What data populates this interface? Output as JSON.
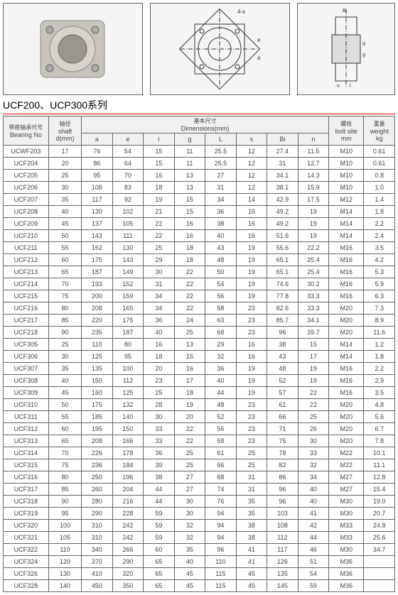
{
  "series_title": "UCF200、UCP300系列",
  "diagram_label_4s": "4-s",
  "headers": {
    "bearing_cjk": "带座轴承代号",
    "bearing_en": "Bearing No",
    "shaft_cjk": "轴径",
    "shaft_en": "shaft",
    "shaft_unit": "d(mm)",
    "dims_cjk": "基本尺寸",
    "dims_en": "Dimensions(mm)",
    "bolt_cjk": "螺栓",
    "bolt_en": "bolt site",
    "bolt_unit": "mm",
    "weight_cjk": "重量",
    "weight_en": "weight",
    "weight_unit": "kg",
    "a": "a",
    "e": "e",
    "i": "i",
    "g": "g",
    "l": "L",
    "s": "s",
    "bi": "Bi",
    "n": "n"
  },
  "rows": [
    {
      "no": "UCWF203",
      "d": "17",
      "a": "76",
      "e": "54",
      "i": "15",
      "g": "11",
      "l": "25.5",
      "s": "12",
      "bi": "27.4",
      "n": "11.5",
      "bolt": "M10",
      "wt": "0.61"
    },
    {
      "no": "UCF204",
      "d": "20",
      "a": "86",
      "e": "64",
      "i": "15",
      "g": "11",
      "l": "25.5",
      "s": "12",
      "bi": "31",
      "n": "12.7",
      "bolt": "M10",
      "wt": "0.61"
    },
    {
      "no": "UCF205",
      "d": "25",
      "a": "95",
      "e": "70",
      "i": "16",
      "g": "13",
      "l": "27",
      "s": "12",
      "bi": "34.1",
      "n": "14.3",
      "bolt": "M10",
      "wt": "0.8"
    },
    {
      "no": "UCF206",
      "d": "30",
      "a": "108",
      "e": "83",
      "i": "18",
      "g": "13",
      "l": "31",
      "s": "12",
      "bi": "38.1",
      "n": "15.9",
      "bolt": "M10",
      "wt": "1.0"
    },
    {
      "no": "UCF207",
      "d": "35",
      "a": "117",
      "e": "92",
      "i": "19",
      "g": "15",
      "l": "34",
      "s": "14",
      "bi": "42.9",
      "n": "17.5",
      "bolt": "M12",
      "wt": "1.4"
    },
    {
      "no": "UCF208",
      "d": "40",
      "a": "130",
      "e": "102",
      "i": "21",
      "g": "15",
      "l": "36",
      "s": "16",
      "bi": "49.2",
      "n": "19",
      "bolt": "M14",
      "wt": "1.8"
    },
    {
      "no": "UCF209",
      "d": "45",
      "a": "137",
      "e": "105",
      "i": "22",
      "g": "16",
      "l": "38",
      "s": "16",
      "bi": "49.2",
      "n": "19",
      "bolt": "M14",
      "wt": "2.2"
    },
    {
      "no": "UCF210",
      "d": "50",
      "a": "143",
      "e": "111",
      "i": "22",
      "g": "16",
      "l": "40",
      "s": "16",
      "bi": "51.6",
      "n": "19",
      "bolt": "M14",
      "wt": "2.4"
    },
    {
      "no": "UCF211",
      "d": "55",
      "a": "162",
      "e": "130",
      "i": "25",
      "g": "18",
      "l": "43",
      "s": "19",
      "bi": "55.6",
      "n": "22.2",
      "bolt": "M16",
      "wt": "3.5"
    },
    {
      "no": "UCF212",
      "d": "60",
      "a": "175",
      "e": "143",
      "i": "29",
      "g": "18",
      "l": "48",
      "s": "19",
      "bi": "65.1",
      "n": "25.4",
      "bolt": "M16",
      "wt": "4.2"
    },
    {
      "no": "UCF213",
      "d": "65",
      "a": "187",
      "e": "149",
      "i": "30",
      "g": "22",
      "l": "50",
      "s": "19",
      "bi": "65.1",
      "n": "25.4",
      "bolt": "M16",
      "wt": "5.3"
    },
    {
      "no": "UCF214",
      "d": "70",
      "a": "193",
      "e": "152",
      "i": "31",
      "g": "22",
      "l": "54",
      "s": "19",
      "bi": "74.6",
      "n": "30.2",
      "bolt": "M16",
      "wt": "5.9"
    },
    {
      "no": "UCF215",
      "d": "75",
      "a": "200",
      "e": "159",
      "i": "34",
      "g": "22",
      "l": "56",
      "s": "19",
      "bi": "77.8",
      "n": "33.3",
      "bolt": "M16",
      "wt": "6.3"
    },
    {
      "no": "UCF216",
      "d": "80",
      "a": "208",
      "e": "165",
      "i": "34",
      "g": "22",
      "l": "58",
      "s": "23",
      "bi": "82.6",
      "n": "33.3",
      "bolt": "M20",
      "wt": "7.3"
    },
    {
      "no": "UCF217",
      "d": "85",
      "a": "220",
      "e": "175",
      "i": "36",
      "g": "24",
      "l": "63",
      "s": "23",
      "bi": "85.7",
      "n": "34.1",
      "bolt": "M20",
      "wt": "8.9"
    },
    {
      "no": "UCF218",
      "d": "90",
      "a": "235",
      "e": "187",
      "i": "40",
      "g": "25",
      "l": "68",
      "s": "23",
      "bi": "96",
      "n": "39.7",
      "bolt": "M20",
      "wt": "11.6"
    },
    {
      "no": "UCF305",
      "d": "25",
      "a": "110",
      "e": "80",
      "i": "16",
      "g": "13",
      "l": "29",
      "s": "16",
      "bi": "38",
      "n": "15",
      "bolt": "M14",
      "wt": "1.2"
    },
    {
      "no": "UCF306",
      "d": "30",
      "a": "125",
      "e": "95",
      "i": "18",
      "g": "15",
      "l": "32",
      "s": "16",
      "bi": "43",
      "n": "17",
      "bolt": "M14",
      "wt": "1.8"
    },
    {
      "no": "UCF307",
      "d": "35",
      "a": "135",
      "e": "100",
      "i": "20",
      "g": "16",
      "l": "36",
      "s": "19",
      "bi": "48",
      "n": "19",
      "bolt": "M16",
      "wt": "2.2"
    },
    {
      "no": "UCF308",
      "d": "40",
      "a": "150",
      "e": "112",
      "i": "23",
      "g": "17",
      "l": "40",
      "s": "19",
      "bi": "52",
      "n": "19",
      "bolt": "M16",
      "wt": "2.9"
    },
    {
      "no": "UCF309",
      "d": "45",
      "a": "160",
      "e": "125",
      "i": "25",
      "g": "18",
      "l": "44",
      "s": "19",
      "bi": "57",
      "n": "22",
      "bolt": "M16",
      "wt": "3.5"
    },
    {
      "no": "UCF310",
      "d": "50",
      "a": "175",
      "e": "132",
      "i": "28",
      "g": "19",
      "l": "48",
      "s": "23",
      "bi": "61",
      "n": "22",
      "bolt": "M20",
      "wt": "4.8"
    },
    {
      "no": "UCF311",
      "d": "55",
      "a": "185",
      "e": "140",
      "i": "30",
      "g": "20",
      "l": "52",
      "s": "23",
      "bi": "66",
      "n": "25",
      "bolt": "M20",
      "wt": "5.6"
    },
    {
      "no": "UCF312",
      "d": "60",
      "a": "195",
      "e": "150",
      "i": "33",
      "g": "22",
      "l": "56",
      "s": "23",
      "bi": "71",
      "n": "26",
      "bolt": "M20",
      "wt": "6.7"
    },
    {
      "no": "UCF313",
      "d": "65",
      "a": "208",
      "e": "166",
      "i": "33",
      "g": "22",
      "l": "58",
      "s": "23",
      "bi": "75",
      "n": "30",
      "bolt": "M20",
      "wt": "7.8"
    },
    {
      "no": "UCF314",
      "d": "70",
      "a": "226",
      "e": "178",
      "i": "36",
      "g": "25",
      "l": "61",
      "s": "25",
      "bi": "78",
      "n": "33",
      "bolt": "M22",
      "wt": "10.1"
    },
    {
      "no": "UCF315",
      "d": "75",
      "a": "236",
      "e": "184",
      "i": "39",
      "g": "25",
      "l": "66",
      "s": "25",
      "bi": "82",
      "n": "32",
      "bolt": "M22",
      "wt": "11.1"
    },
    {
      "no": "UCF316",
      "d": "80",
      "a": "250",
      "e": "196",
      "i": "38",
      "g": "27",
      "l": "68",
      "s": "31",
      "bi": "86",
      "n": "34",
      "bolt": "M27",
      "wt": "12.8"
    },
    {
      "no": "UCF317",
      "d": "85",
      "a": "260",
      "e": "204",
      "i": "44",
      "g": "27",
      "l": "74",
      "s": "31",
      "bi": "96",
      "n": "40",
      "bolt": "M27",
      "wt": "15.4"
    },
    {
      "no": "UCF318",
      "d": "90",
      "a": "280",
      "e": "216",
      "i": "44",
      "g": "30",
      "l": "76",
      "s": "35",
      "bi": "96",
      "n": "40",
      "bolt": "M30",
      "wt": "19.0"
    },
    {
      "no": "UCF319",
      "d": "95",
      "a": "290",
      "e": "228",
      "i": "59",
      "g": "30",
      "l": "94",
      "s": "35",
      "bi": "103",
      "n": "41",
      "bolt": "M30",
      "wt": "20.7"
    },
    {
      "no": "UCF320",
      "d": "100",
      "a": "310",
      "e": "242",
      "i": "59",
      "g": "32",
      "l": "94",
      "s": "38",
      "bi": "108",
      "n": "42",
      "bolt": "M33",
      "wt": "24.8"
    },
    {
      "no": "UCF321",
      "d": "105",
      "a": "310",
      "e": "242",
      "i": "59",
      "g": "32",
      "l": "94",
      "s": "38",
      "bi": "112",
      "n": "44",
      "bolt": "M33",
      "wt": "25.6"
    },
    {
      "no": "UCF322",
      "d": "110",
      "a": "340",
      "e": "266",
      "i": "60",
      "g": "35",
      "l": "96",
      "s": "41",
      "bi": "117",
      "n": "46",
      "bolt": "M30",
      "wt": "34.7"
    },
    {
      "no": "UCF324",
      "d": "120",
      "a": "370",
      "e": "290",
      "i": "65",
      "g": "40",
      "l": "110",
      "s": "41",
      "bi": "126",
      "n": "51",
      "bolt": "M36",
      "wt": ""
    },
    {
      "no": "UCF326",
      "d": "130",
      "a": "410",
      "e": "320",
      "i": "65",
      "g": "45",
      "l": "115",
      "s": "45",
      "bi": "135",
      "n": "54",
      "bolt": "M36",
      "wt": ""
    },
    {
      "no": "UCF328",
      "d": "140",
      "a": "450",
      "e": "350",
      "i": "65",
      "g": "45",
      "l": "115",
      "s": "45",
      "bi": "145",
      "n": "59",
      "bolt": "M36",
      "wt": ""
    }
  ]
}
